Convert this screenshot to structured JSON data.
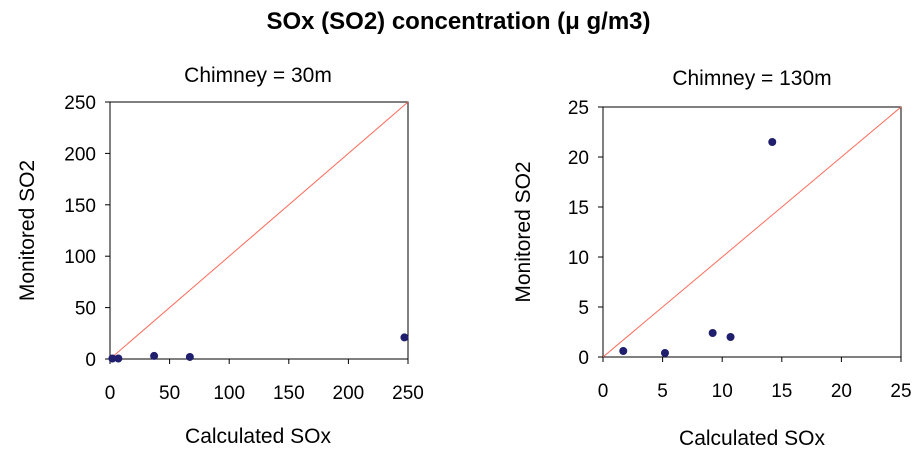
{
  "figure": {
    "title": "SOx (SO2) concentration (μ g/m3)"
  },
  "colors": {
    "point": "#1f1f6e",
    "reference_line": "#ff6a5a",
    "axis": "#000000"
  },
  "chart_data": [
    {
      "type": "scatter",
      "title": "Chimney = 30m",
      "xlabel": "Calculated SOx",
      "ylabel": "Monitored SO2",
      "xlim": [
        0,
        250
      ],
      "ylim": [
        0,
        250
      ],
      "xticks": [
        "0",
        "50",
        "100",
        "150",
        "200",
        "250"
      ],
      "yticks": [
        "0",
        "50",
        "100",
        "150",
        "200",
        "250"
      ],
      "reference_line": "y = x",
      "grid": false,
      "points": [
        {
          "x": 2,
          "y": 0.5
        },
        {
          "x": 7,
          "y": 0.5
        },
        {
          "x": 37,
          "y": 3
        },
        {
          "x": 67,
          "y": 2
        },
        {
          "x": 247,
          "y": 21
        }
      ]
    },
    {
      "type": "scatter",
      "title": "Chimney = 130m",
      "xlabel": "Calculated SOx",
      "ylabel": "Monitored SO2",
      "xlim": [
        0,
        25
      ],
      "ylim": [
        0,
        25
      ],
      "xticks": [
        "0",
        "5",
        "10",
        "15",
        "20",
        "25"
      ],
      "yticks": [
        "0",
        "5",
        "10",
        "15",
        "20",
        "25"
      ],
      "reference_line": "y = x",
      "grid": false,
      "points": [
        {
          "x": 1.7,
          "y": 0.6
        },
        {
          "x": 5.2,
          "y": 0.4
        },
        {
          "x": 9.2,
          "y": 2.4
        },
        {
          "x": 10.7,
          "y": 2.0
        },
        {
          "x": 14.2,
          "y": 21.5
        }
      ]
    }
  ]
}
